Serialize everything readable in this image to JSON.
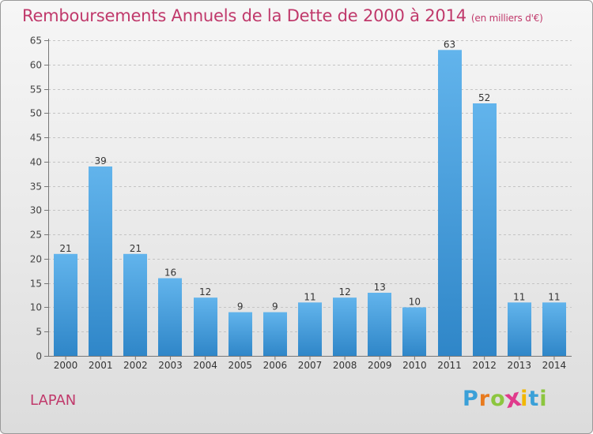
{
  "title": "Remboursements Annuels de la Dette de 2000 à 2014",
  "unit_label": "(en milliers d'€)",
  "location": "LAPAN",
  "logo": {
    "letters": [
      "P",
      "r",
      "o",
      "x",
      "i",
      "t",
      "i"
    ],
    "colors": [
      "#3aa0d8",
      "#e87a1e",
      "#8cc63f",
      "#e03a8c",
      "#f2b700",
      "#3aa0d8",
      "#8cc63f"
    ]
  },
  "colors": {
    "title": "#c0396b",
    "bar_top": "#62b4ec",
    "bar_bottom": "#2f86c8"
  },
  "chart_data": {
    "type": "bar",
    "categories": [
      "2000",
      "2001",
      "2002",
      "2003",
      "2004",
      "2005",
      "2006",
      "2007",
      "2008",
      "2009",
      "2010",
      "2011",
      "2012",
      "2013",
      "2014"
    ],
    "values": [
      21,
      39,
      21,
      16,
      12,
      9,
      9,
      11,
      12,
      13,
      10,
      63,
      52,
      11,
      11
    ],
    "ylim": [
      0,
      65
    ],
    "yticks": [
      0,
      5,
      10,
      15,
      20,
      25,
      30,
      35,
      40,
      45,
      50,
      55,
      60,
      65
    ],
    "grid": "horizontal dashed",
    "legend": "none"
  }
}
